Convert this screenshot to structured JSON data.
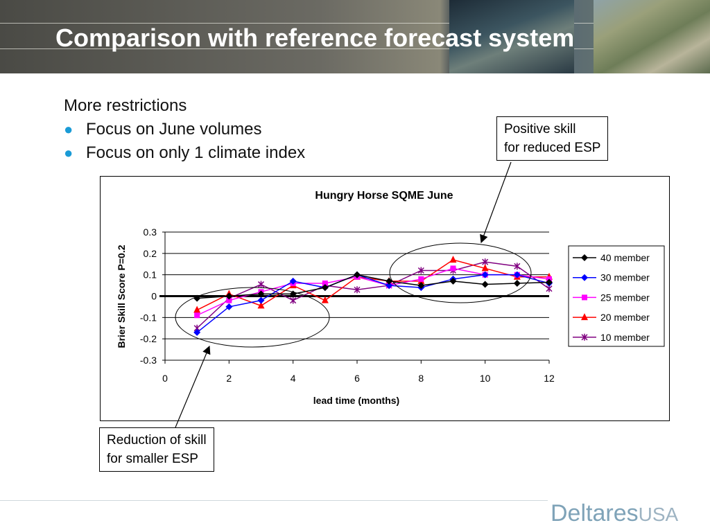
{
  "header": {
    "title": "Comparison with reference forecast system"
  },
  "intro": {
    "heading": "More restrictions",
    "bullets": [
      "Focus on June volumes",
      "Focus on only 1 climate index"
    ]
  },
  "callouts": {
    "positive": [
      "Positive skill",
      "for reduced ESP"
    ],
    "reduction": [
      "Reduction of skill",
      "for smaller ESP"
    ]
  },
  "logo": {
    "brand": "Deltares",
    "suffix": "USA"
  },
  "chart_data": {
    "type": "line",
    "title": "Hungry Horse SQME June",
    "xlabel": "lead time (months)",
    "ylabel": "Brier Skill Score P=0.2",
    "xlim": [
      0,
      12
    ],
    "ylim": [
      -0.3,
      0.3
    ],
    "xticks": [
      "0",
      "2",
      "4",
      "6",
      "8",
      "10",
      "12"
    ],
    "yticks": [
      "0.3",
      "0.2",
      "0.1",
      "0",
      "-0.1",
      "-0.2",
      "-0.3"
    ],
    "grid": true,
    "legend_position": "right",
    "x": [
      1,
      2,
      3,
      4,
      5,
      6,
      7,
      8,
      9,
      10,
      11,
      12
    ],
    "series": [
      {
        "name": "40 member",
        "color": "#000000",
        "marker": "diamond",
        "values": [
          -0.01,
          0.0,
          0.01,
          0.01,
          0.04,
          0.1,
          0.07,
          0.05,
          0.07,
          0.055,
          0.06,
          0.065
        ]
      },
      {
        "name": "30 member",
        "color": "#0000ff",
        "marker": "diamond",
        "values": [
          -0.17,
          -0.05,
          -0.02,
          0.07,
          0.04,
          0.1,
          0.05,
          0.04,
          0.08,
          0.1,
          0.1,
          0.06
        ]
      },
      {
        "name": "25 member",
        "color": "#ff00ff",
        "marker": "square",
        "values": [
          -0.09,
          -0.02,
          0.02,
          0.06,
          0.06,
          0.09,
          0.05,
          0.08,
          0.13,
          0.1,
          0.1,
          0.08
        ]
      },
      {
        "name": "20 member",
        "color": "#ff0000",
        "marker": "triangle",
        "values": [
          -0.065,
          0.01,
          -0.045,
          0.05,
          -0.02,
          0.09,
          0.07,
          0.07,
          0.17,
          0.13,
          0.09,
          0.09
        ]
      },
      {
        "name": "10 member",
        "color": "#800080",
        "marker": "x",
        "values": [
          -0.15,
          -0.01,
          0.055,
          -0.02,
          0.05,
          0.03,
          0.05,
          0.12,
          0.12,
          0.16,
          0.14,
          0.035
        ]
      }
    ]
  }
}
